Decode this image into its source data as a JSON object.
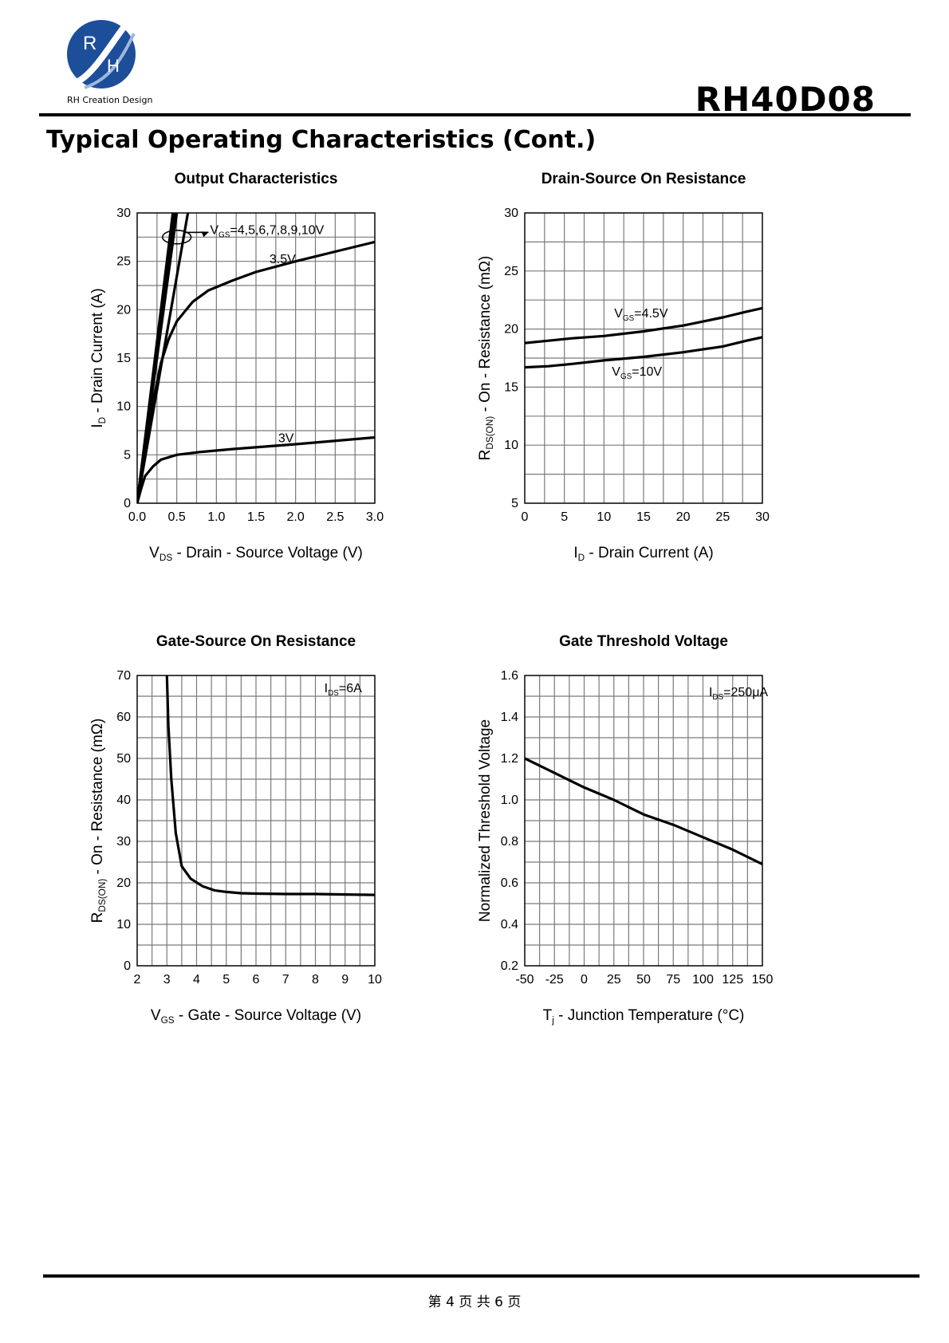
{
  "header": {
    "logo_text": "RH Creation Design",
    "logo_letters": [
      "R",
      "H"
    ],
    "part_number": "RH40D08"
  },
  "section_title": "Typical Operating Characteristics (Cont.)",
  "footer": {
    "page_label": "第 4 页 共 6 页"
  },
  "colors": {
    "line": "#000000",
    "grid": "#7a7a7a",
    "logo_blue": "#1d4e9a"
  },
  "chart_data": [
    {
      "type": "line",
      "title": "Output Characteristics",
      "xlabel": "Vᴅₛ - Drain - Source Voltage (V)",
      "xlabel_main": "V",
      "xlabel_sub": "DS",
      "xlabel_rest": " - Drain - Source Voltage (V)",
      "ylabel_main": "I",
      "ylabel_sub": "D",
      "ylabel_rest": " - Drain Current (A)",
      "xlim": [
        0,
        3.0
      ],
      "ylim": [
        0,
        30
      ],
      "xticks": [
        "0.0",
        "0.5",
        "1.0",
        "1.5",
        "2.0",
        "2.5",
        "3.0"
      ],
      "yticks": [
        "0",
        "5",
        "10",
        "15",
        "20",
        "25",
        "30"
      ],
      "x_grid_divisions": 12,
      "y_grid_divisions": 12,
      "series": [
        {
          "name": "3V",
          "x": [
            0,
            0.05,
            0.1,
            0.2,
            0.3,
            0.5,
            0.8,
            1.2,
            2.0,
            3.0
          ],
          "y": [
            0,
            1.5,
            2.8,
            3.8,
            4.5,
            5.0,
            5.3,
            5.6,
            6.1,
            6.8
          ]
        },
        {
          "name": "3.5V",
          "x": [
            0,
            0.1,
            0.2,
            0.3,
            0.4,
            0.5,
            0.7,
            0.9,
            1.2,
            1.5,
            2.0,
            2.5,
            3.0
          ],
          "y": [
            0,
            5.5,
            10.5,
            14.5,
            17.0,
            18.8,
            20.8,
            22.0,
            23.0,
            23.9,
            25.0,
            26.0,
            27.0
          ]
        },
        {
          "name": "4.5V",
          "x": [
            0,
            0.5
          ],
          "y": [
            0,
            30
          ]
        },
        {
          "name": "5V",
          "x": [
            0,
            0.49
          ],
          "y": [
            0,
            30
          ]
        },
        {
          "name": "6V",
          "x": [
            0,
            0.48
          ],
          "y": [
            0,
            30
          ]
        },
        {
          "name": "7V",
          "x": [
            0,
            0.47
          ],
          "y": [
            0,
            30
          ]
        },
        {
          "name": "8V",
          "x": [
            0,
            0.46
          ],
          "y": [
            0,
            30
          ]
        },
        {
          "name": "9V",
          "x": [
            0,
            0.45
          ],
          "y": [
            0,
            30
          ]
        },
        {
          "name": "10V",
          "x": [
            0,
            0.64
          ],
          "y": [
            0,
            30
          ]
        }
      ],
      "annotations": [
        {
          "text_main": "V",
          "text_sub": "GS",
          "text_rest": "=4,5,6,7,8,9,10V",
          "x": 0.92,
          "y": 27.8
        },
        {
          "text_main": "3.5V",
          "text_sub": "",
          "text_rest": "",
          "x": 1.67,
          "y": 24.8
        },
        {
          "text_main": "3V",
          "text_sub": "",
          "text_rest": "",
          "x": 1.78,
          "y": 6.3
        }
      ],
      "legend_ellipse": {
        "cx": 0.5,
        "cy": 27.5,
        "rx": 0.18,
        "ry": 0.7
      }
    },
    {
      "type": "line",
      "title": "Drain-Source On Resistance",
      "xlabel_main": "I",
      "xlabel_sub": "D",
      "xlabel_rest": " - Drain Current (A)",
      "ylabel_main": "R",
      "ylabel_sub": "DS(ON)",
      "ylabel_rest": " - On - Resistance (mΩ)",
      "xlim": [
        0,
        30
      ],
      "ylim": [
        5,
        30
      ],
      "xticks": [
        "0",
        "5",
        "10",
        "15",
        "20",
        "25",
        "30"
      ],
      "yticks": [
        "5",
        "10",
        "15",
        "20",
        "25",
        "30"
      ],
      "x_grid_divisions": 12,
      "y_grid_divisions": 10,
      "series": [
        {
          "name": "4.5V",
          "x": [
            0,
            3,
            6,
            10,
            15,
            20,
            25,
            28,
            30
          ],
          "y": [
            18.8,
            19.0,
            19.2,
            19.4,
            19.8,
            20.3,
            21.0,
            21.5,
            21.8
          ]
        },
        {
          "name": "10V",
          "x": [
            0,
            3,
            6,
            10,
            15,
            20,
            25,
            28,
            30
          ],
          "y": [
            16.7,
            16.8,
            17.0,
            17.3,
            17.6,
            18.0,
            18.5,
            19.0,
            19.3
          ]
        }
      ],
      "annotations": [
        {
          "text_main": "V",
          "text_sub": "GS",
          "text_rest": "=4.5V",
          "x": 11.3,
          "y": 21.0
        },
        {
          "text_main": "V",
          "text_sub": "GS",
          "text_rest": "=10V",
          "x": 11.0,
          "y": 16.0
        }
      ]
    },
    {
      "type": "line",
      "title": "Gate-Source On Resistance",
      "xlabel_main": "V",
      "xlabel_sub": "GS",
      "xlabel_rest": " - Gate - Source Voltage (V)",
      "ylabel_main": "R",
      "ylabel_sub": "DS(ON)",
      "ylabel_rest": " - On - Resistance (mΩ)",
      "xlim": [
        2,
        10
      ],
      "ylim": [
        0,
        70
      ],
      "xticks": [
        "2",
        "3",
        "4",
        "5",
        "6",
        "7",
        "8",
        "9",
        "10"
      ],
      "yticks": [
        "0",
        "10",
        "20",
        "30",
        "40",
        "50",
        "60",
        "70"
      ],
      "x_grid_divisions": 16,
      "y_grid_divisions": 14,
      "series": [
        {
          "name": "",
          "x": [
            3.0,
            3.05,
            3.15,
            3.3,
            3.5,
            3.8,
            4.2,
            4.6,
            5.0,
            5.5,
            6.0,
            7.0,
            8.0,
            9.0,
            10.0
          ],
          "y": [
            70,
            58,
            45,
            32,
            24,
            21,
            19.2,
            18.2,
            17.8,
            17.5,
            17.4,
            17.3,
            17.3,
            17.2,
            17.1
          ]
        }
      ],
      "annotations": [
        {
          "text_main": "I",
          "text_sub": "DS",
          "text_rest": "=6A",
          "x": 8.3,
          "y": 66.0
        }
      ]
    },
    {
      "type": "line",
      "title": "Gate Threshold Voltage",
      "xlabel_main": "T",
      "xlabel_sub": "j",
      "xlabel_rest": " - Junction Temperature (°C)",
      "ylabel_main": "Normalized Threshold Voltage",
      "ylabel_sub": "",
      "ylabel_rest": "",
      "xlim": [
        -50,
        150
      ],
      "ylim": [
        0.2,
        1.6
      ],
      "xticks": [
        "-50",
        "-25",
        "0",
        "25",
        "50",
        "75",
        "100",
        "125",
        "150"
      ],
      "yticks": [
        "0.2",
        "0.4",
        "0.6",
        "0.8",
        "1.0",
        "1.2",
        "1.4",
        "1.6"
      ],
      "x_grid_divisions": 16,
      "y_grid_divisions": 14,
      "series": [
        {
          "name": "",
          "x": [
            -50,
            -25,
            0,
            25,
            50,
            75,
            100,
            125,
            150
          ],
          "y": [
            1.2,
            1.13,
            1.06,
            1.0,
            0.93,
            0.88,
            0.82,
            0.76,
            0.69
          ]
        }
      ],
      "annotations": [
        {
          "text_main": "I",
          "text_sub": "DS",
          "text_rest": "=250μA",
          "x": 105,
          "y": 1.5
        }
      ]
    }
  ]
}
